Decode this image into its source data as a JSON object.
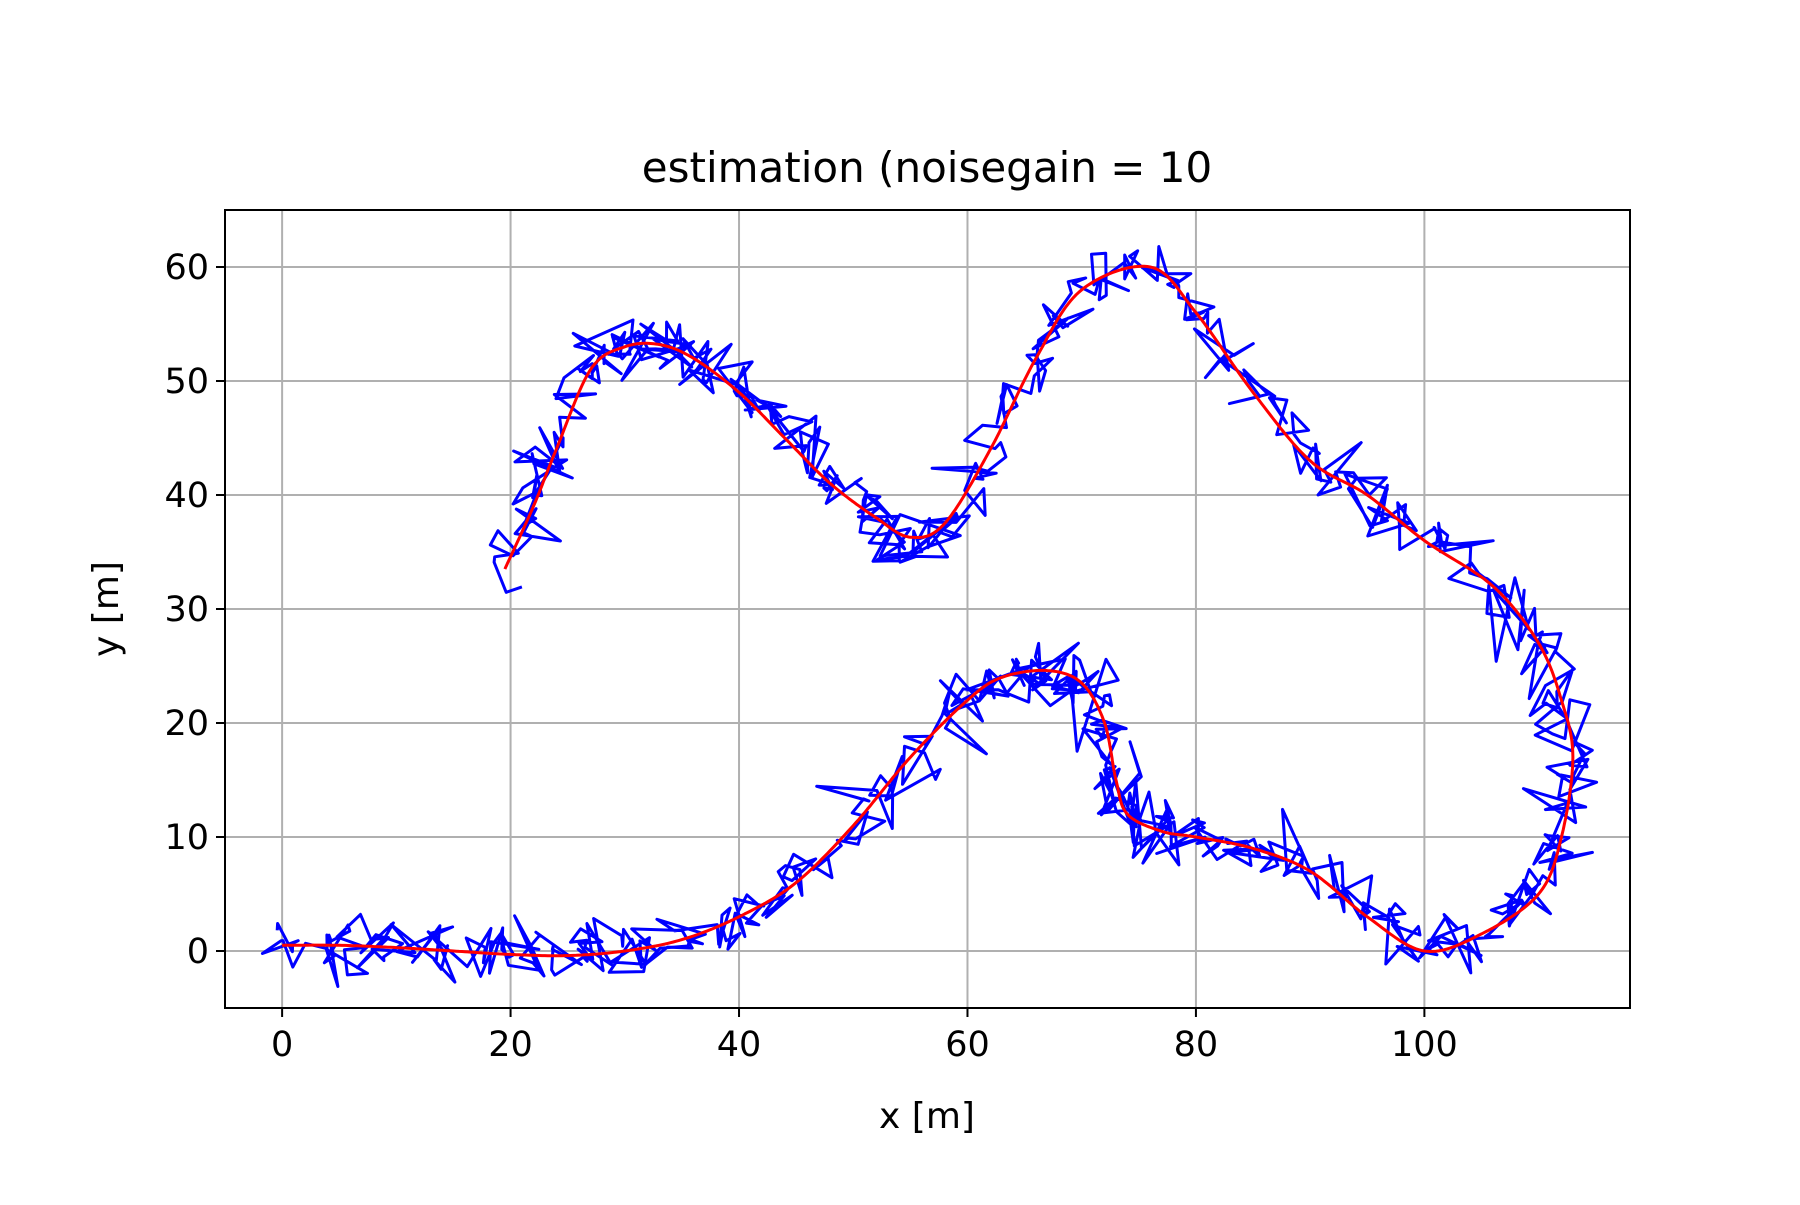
{
  "chart_data": {
    "type": "line",
    "title": "estimation (noisegain = 10",
    "xlabel": "x [m]",
    "ylabel": "y [m]",
    "xlim": [
      -5,
      118
    ],
    "ylim": [
      -5,
      65
    ],
    "xticks": [
      0,
      20,
      40,
      60,
      80,
      100
    ],
    "yticks": [
      0,
      10,
      20,
      30,
      40,
      50,
      60
    ],
    "grid": true,
    "legend": "none",
    "series": [
      {
        "color": "#0000ff",
        "style": "noisy estimate around reference path",
        "noise_amplitude": 2.5,
        "samples": 900
      },
      {
        "color": "#ff0000",
        "style": "smooth reference path",
        "x": [
          0,
          5,
          10,
          15,
          20,
          25,
          30,
          35,
          40,
          45,
          50,
          55,
          60,
          63,
          67,
          70,
          72,
          73,
          74,
          77,
          80,
          85,
          90,
          95,
          100,
          105,
          110,
          112,
          113,
          112,
          110,
          106,
          100,
          95,
          90,
          85,
          80,
          76,
          70,
          66,
          62,
          58,
          55,
          52,
          48,
          44,
          40,
          36,
          33,
          30,
          27,
          24,
          22,
          19.5
        ],
        "y": [
          0.5,
          0.5,
          0.3,
          0,
          -0.3,
          -0.4,
          0,
          1,
          3,
          6,
          11,
          17,
          22,
          24,
          24.6,
          23.5,
          20,
          15,
          12,
          10.5,
          10,
          9,
          7,
          3,
          0,
          1.5,
          5,
          10,
          17,
          22,
          27,
          32,
          36,
          40,
          43,
          49,
          56,
          60,
          58,
          52,
          44,
          37.5,
          36.3,
          38,
          41,
          45,
          49,
          52,
          53.2,
          53,
          51,
          44,
          39,
          33.5
        ]
      }
    ]
  }
}
